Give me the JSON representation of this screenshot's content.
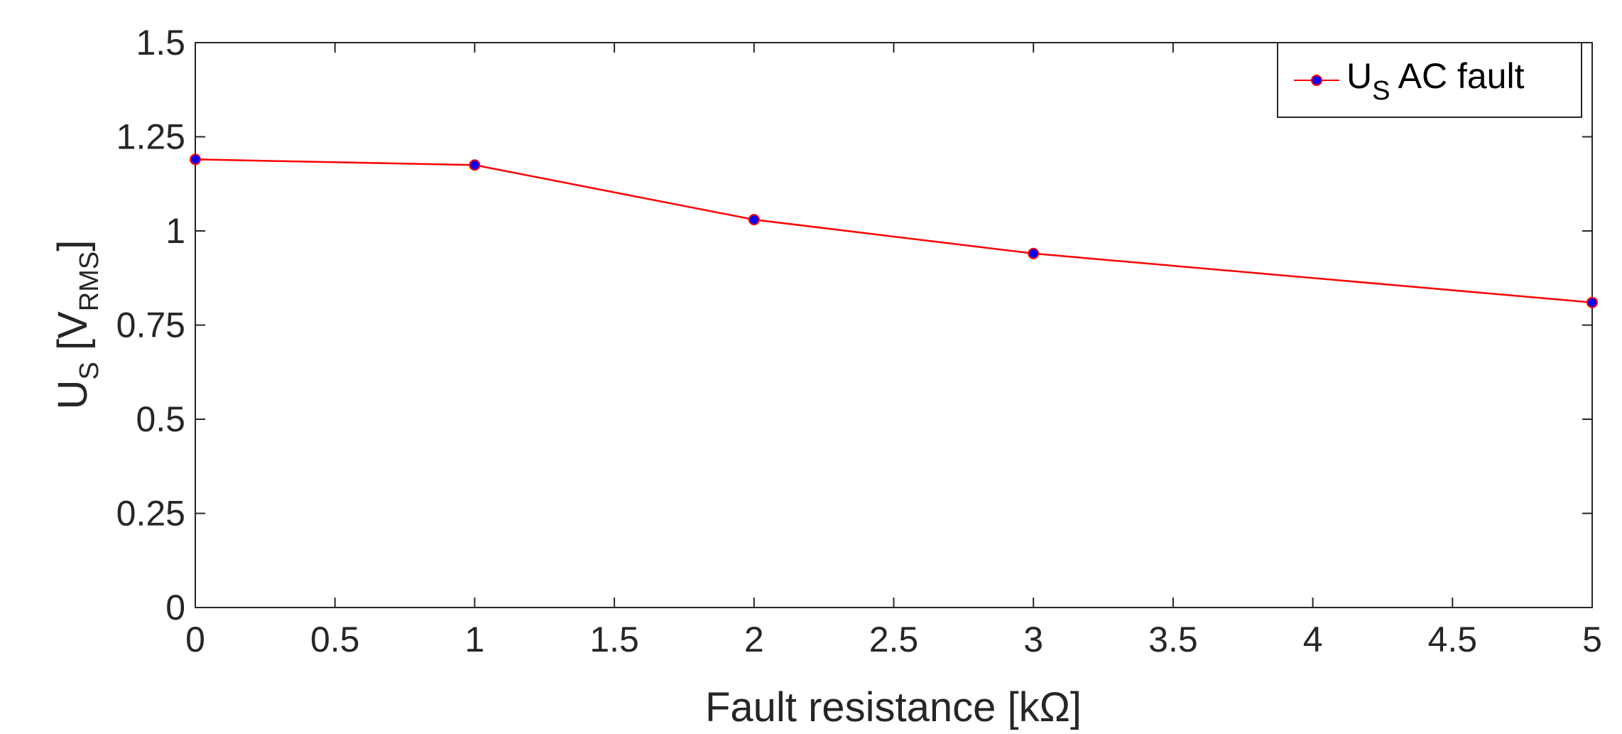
{
  "chart_data": {
    "type": "line",
    "title": "",
    "xlabel": "Fault resistance [kΩ]",
    "ylabel": {
      "main": "U",
      "sub": "S",
      "bracket_open": " [V",
      "unit_sub": "RMS",
      "bracket_close": "]"
    },
    "xlim": [
      0,
      5
    ],
    "ylim": [
      0,
      1.5
    ],
    "x_ticks": [
      0,
      0.5,
      1,
      1.5,
      2,
      2.5,
      3,
      3.5,
      4,
      4.5,
      5
    ],
    "x_tick_labels": [
      "0",
      "0.5",
      "1",
      "1.5",
      "2",
      "2.5",
      "3",
      "3.5",
      "4",
      "4.5",
      "5"
    ],
    "y_ticks": [
      0,
      0.25,
      0.5,
      0.75,
      1,
      1.25,
      1.5
    ],
    "y_tick_labels": [
      "0",
      "0.25",
      "0.5",
      "0.75",
      "1",
      "1.25",
      "1.5"
    ],
    "grid": false,
    "legend_position": "top-right",
    "series": [
      {
        "name": {
          "main": "U",
          "sub": "S",
          "rest": " AC fault"
        },
        "x": [
          0,
          1,
          2,
          3,
          5
        ],
        "y": [
          1.19,
          1.175,
          1.03,
          0.94,
          0.81
        ],
        "line_color": "#ff0000",
        "marker_fill": "#0000ff",
        "marker_edge": "#ff0000"
      }
    ]
  }
}
